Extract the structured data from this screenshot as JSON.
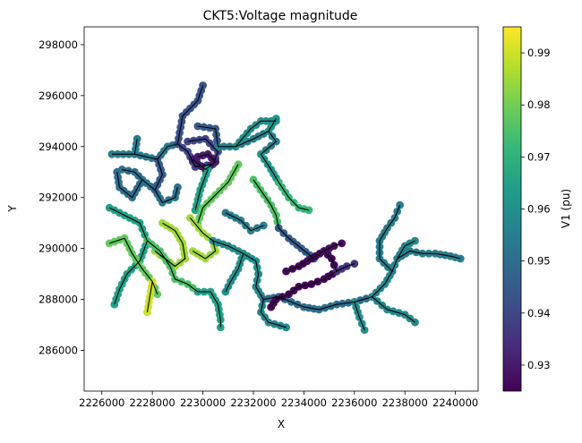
{
  "chart_data": {
    "type": "scatter",
    "title": "CKT5:Voltage magnitude",
    "xlabel": "X",
    "ylabel": "Y",
    "xlim": [
      2225300,
      2240900
    ],
    "ylim": [
      284400,
      298700
    ],
    "xticks": [
      2226000,
      2228000,
      2230000,
      2232000,
      2234000,
      2236000,
      2238000,
      2240000
    ],
    "yticks": [
      286000,
      288000,
      290000,
      292000,
      294000,
      296000,
      298000
    ],
    "grid": false,
    "colorbar": {
      "label": "V1 (pu)",
      "colormap": "viridis",
      "range": [
        0.925,
        0.995
      ],
      "ticks": [
        0.93,
        0.94,
        0.95,
        0.96,
        0.97,
        0.98,
        0.99
      ],
      "tick_labels": [
        "0.93",
        "0.94",
        "0.95",
        "0.96",
        "0.97",
        "0.98",
        "0.99"
      ]
    },
    "feeders": [
      {
        "v": 0.955,
        "pts": [
          [
            2226400,
            293700
          ],
          [
            2227300,
            293700
          ],
          [
            2227400,
            294300
          ]
        ]
      },
      {
        "v": 0.953,
        "pts": [
          [
            2227300,
            293700
          ],
          [
            2228200,
            293500
          ],
          [
            2228600,
            294000
          ],
          [
            2229000,
            294100
          ]
        ]
      },
      {
        "v": 0.95,
        "pts": [
          [
            2226600,
            293000
          ],
          [
            2226700,
            292400
          ],
          [
            2227200,
            292000
          ],
          [
            2227600,
            292700
          ],
          [
            2227300,
            293000
          ],
          [
            2226800,
            293100
          ]
        ]
      },
      {
        "v": 0.952,
        "pts": [
          [
            2227600,
            292700
          ],
          [
            2228100,
            292300
          ],
          [
            2228400,
            291800
          ],
          [
            2228900,
            292000
          ],
          [
            2229000,
            292400
          ]
        ]
      },
      {
        "v": 0.945,
        "pts": [
          [
            2228200,
            293500
          ],
          [
            2228400,
            292900
          ],
          [
            2228100,
            292300
          ]
        ]
      },
      {
        "v": 0.943,
        "pts": [
          [
            2229000,
            294100
          ],
          [
            2229200,
            295200
          ],
          [
            2229800,
            295800
          ],
          [
            2230000,
            296400
          ]
        ]
      },
      {
        "v": 0.94,
        "pts": [
          [
            2229000,
            294100
          ],
          [
            2229400,
            293800
          ],
          [
            2229700,
            293200
          ],
          [
            2230400,
            293300
          ],
          [
            2230600,
            293800
          ],
          [
            2230100,
            294300
          ],
          [
            2229400,
            294200
          ]
        ]
      },
      {
        "v": 0.93,
        "pts": [
          [
            2229600,
            293500
          ],
          [
            2230100,
            293100
          ],
          [
            2230500,
            293400
          ],
          [
            2230200,
            293700
          ],
          [
            2229800,
            293600
          ]
        ]
      },
      {
        "v": 0.945,
        "pts": [
          [
            2229800,
            294800
          ],
          [
            2230500,
            294700
          ],
          [
            2230600,
            294000
          ]
        ]
      },
      {
        "v": 0.955,
        "pts": [
          [
            2230600,
            294000
          ],
          [
            2231300,
            294000
          ],
          [
            2232000,
            294300
          ],
          [
            2232600,
            294600
          ],
          [
            2232900,
            294200
          ],
          [
            2232300,
            293700
          ]
        ]
      },
      {
        "v": 0.962,
        "pts": [
          [
            2232300,
            293700
          ],
          [
            2232700,
            293100
          ],
          [
            2233000,
            292600
          ]
        ]
      },
      {
        "v": 0.972,
        "pts": [
          [
            2233000,
            292600
          ],
          [
            2233400,
            292000
          ],
          [
            2233800,
            291600
          ],
          [
            2234200,
            291500
          ]
        ]
      },
      {
        "v": 0.975,
        "pts": [
          [
            2232000,
            292700
          ],
          [
            2232700,
            291700
          ],
          [
            2232900,
            291300
          ],
          [
            2233000,
            290800
          ]
        ]
      },
      {
        "v": 0.965,
        "pts": [
          [
            2230200,
            293100
          ],
          [
            2229900,
            292300
          ],
          [
            2229700,
            291500
          ]
        ]
      },
      {
        "v": 0.978,
        "pts": [
          [
            2231400,
            293300
          ],
          [
            2231000,
            292600
          ],
          [
            2230500,
            292100
          ],
          [
            2230000,
            291600
          ],
          [
            2229800,
            291000
          ]
        ]
      },
      {
        "v": 0.985,
        "pts": [
          [
            2228400,
            291000
          ],
          [
            2228900,
            290700
          ],
          [
            2229200,
            290200
          ],
          [
            2229300,
            289600
          ],
          [
            2228900,
            289300
          ],
          [
            2228500,
            289600
          ],
          [
            2228100,
            289900
          ]
        ]
      },
      {
        "v": 0.985,
        "pts": [
          [
            2229500,
            291200
          ],
          [
            2230000,
            290600
          ],
          [
            2230400,
            290300
          ],
          [
            2230500,
            289900
          ],
          [
            2230100,
            289600
          ],
          [
            2229600,
            289900
          ]
        ]
      },
      {
        "v": 0.965,
        "pts": [
          [
            2226300,
            291600
          ],
          [
            2226900,
            291300
          ],
          [
            2227500,
            291000
          ],
          [
            2227800,
            290300
          ],
          [
            2227500,
            289500
          ],
          [
            2227000,
            289000
          ],
          [
            2226700,
            288400
          ],
          [
            2226500,
            287800
          ]
        ]
      },
      {
        "v": 0.978,
        "pts": [
          [
            2226300,
            290200
          ],
          [
            2226900,
            290400
          ],
          [
            2227200,
            289800
          ],
          [
            2227600,
            289200
          ],
          [
            2228000,
            288700
          ],
          [
            2228200,
            288200
          ]
        ]
      },
      {
        "v": 0.975,
        "pts": [
          [
            2227800,
            290300
          ],
          [
            2228300,
            289900
          ],
          [
            2228700,
            289300
          ],
          [
            2228900,
            288800
          ],
          [
            2229400,
            288600
          ],
          [
            2229800,
            288300
          ]
        ]
      },
      {
        "v": 0.99,
        "pts": [
          [
            2228000,
            288700
          ],
          [
            2227900,
            288100
          ],
          [
            2227800,
            287500
          ]
        ]
      },
      {
        "v": 0.965,
        "pts": [
          [
            2229800,
            288300
          ],
          [
            2230300,
            288300
          ],
          [
            2230600,
            287800
          ],
          [
            2230700,
            287200
          ],
          [
            2230700,
            286900
          ]
        ]
      },
      {
        "v": 0.96,
        "pts": [
          [
            2230400,
            290300
          ],
          [
            2231000,
            290100
          ],
          [
            2231600,
            289800
          ],
          [
            2232100,
            289500
          ],
          [
            2232200,
            289000
          ]
        ]
      },
      {
        "v": 0.955,
        "pts": [
          [
            2230900,
            291400
          ],
          [
            2231500,
            291100
          ],
          [
            2231900,
            290700
          ],
          [
            2232400,
            290900
          ]
        ]
      },
      {
        "v": 0.958,
        "pts": [
          [
            2232200,
            289000
          ],
          [
            2232100,
            288500
          ],
          [
            2232400,
            288000
          ],
          [
            2232300,
            287500
          ],
          [
            2232600,
            287100
          ],
          [
            2233300,
            286900
          ]
        ]
      },
      {
        "v": 0.96,
        "pts": [
          [
            2231600,
            289800
          ],
          [
            2231400,
            289200
          ],
          [
            2231100,
            288700
          ],
          [
            2230900,
            288300
          ]
        ]
      },
      {
        "v": 0.95,
        "pts": [
          [
            2232400,
            288000
          ],
          [
            2233000,
            288100
          ],
          [
            2233500,
            287900
          ],
          [
            2234000,
            287700
          ],
          [
            2234600,
            287600
          ],
          [
            2235300,
            287800
          ],
          [
            2236000,
            287900
          ],
          [
            2236700,
            288100
          ]
        ]
      },
      {
        "v": 0.958,
        "pts": [
          [
            2236700,
            288100
          ],
          [
            2237200,
            288600
          ],
          [
            2237500,
            289100
          ],
          [
            2237700,
            289600
          ],
          [
            2238000,
            290100
          ],
          [
            2238400,
            290300
          ]
        ]
      },
      {
        "v": 0.955,
        "pts": [
          [
            2237500,
            289100
          ],
          [
            2237000,
            289600
          ],
          [
            2237000,
            290300
          ],
          [
            2237300,
            290800
          ],
          [
            2237600,
            291200
          ],
          [
            2237800,
            291700
          ]
        ]
      },
      {
        "v": 0.955,
        "pts": [
          [
            2237700,
            289600
          ],
          [
            2238200,
            289900
          ],
          [
            2238700,
            289800
          ],
          [
            2239200,
            289800
          ],
          [
            2239800,
            289700
          ],
          [
            2240200,
            289600
          ]
        ]
      },
      {
        "v": 0.958,
        "pts": [
          [
            2236700,
            288100
          ],
          [
            2237300,
            287600
          ],
          [
            2238000,
            287400
          ],
          [
            2238400,
            287100
          ]
        ]
      },
      {
        "v": 0.96,
        "pts": [
          [
            2236000,
            287900
          ],
          [
            2236200,
            287300
          ],
          [
            2236400,
            286800
          ]
        ]
      },
      {
        "v": 0.945,
        "pts": [
          [
            2233000,
            290800
          ],
          [
            2233400,
            290400
          ],
          [
            2233900,
            290000
          ],
          [
            2234400,
            289600
          ]
        ]
      },
      {
        "v": 0.926,
        "pts": [
          [
            2233300,
            289100
          ],
          [
            2233800,
            289300
          ],
          [
            2234300,
            289600
          ],
          [
            2234800,
            289900
          ],
          [
            2235100,
            289600
          ],
          [
            2235300,
            289100
          ],
          [
            2234800,
            288800
          ],
          [
            2234300,
            288600
          ],
          [
            2233800,
            288500
          ],
          [
            2233400,
            288200
          ],
          [
            2232900,
            288000
          ],
          [
            2232700,
            287700
          ]
        ]
      },
      {
        "v": 0.928,
        "pts": [
          [
            2234800,
            289900
          ],
          [
            2235200,
            290100
          ],
          [
            2235500,
            290200
          ]
        ]
      },
      {
        "v": 0.936,
        "pts": [
          [
            2235300,
            289100
          ],
          [
            2235700,
            289300
          ],
          [
            2236000,
            289400
          ]
        ]
      },
      {
        "v": 0.96,
        "pts": [
          [
            2231300,
            294000
          ],
          [
            2231900,
            294700
          ],
          [
            2232300,
            295000
          ],
          [
            2232900,
            295000
          ]
        ]
      },
      {
        "v": 0.962,
        "pts": [
          [
            2232600,
            294600
          ],
          [
            2232900,
            295100
          ]
        ]
      }
    ]
  }
}
